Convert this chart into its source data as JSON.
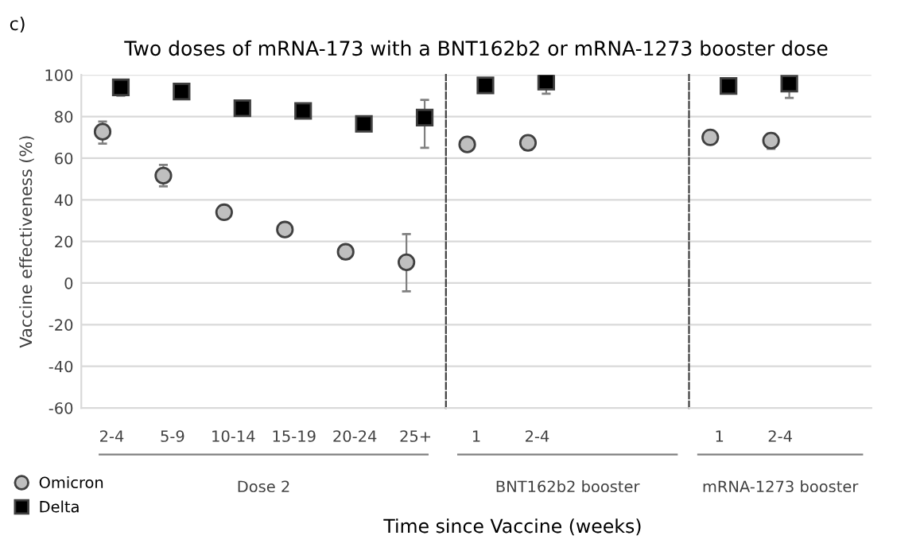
{
  "chart_data": [
    {
      "type": "scatter",
      "title": "Two doses of mRNA-173 with a BNT162b2 or mRNA-1273 booster dose",
      "ylabel": "Vaccine effectiveness (%)",
      "xlabel": "Dose 2",
      "categories": [
        "2-4",
        "5-9",
        "10-14",
        "15-19",
        "20-24",
        "25+"
      ],
      "series": [
        {
          "name": "Omicron",
          "color": "#bfbfbf",
          "marker": "circle",
          "values": [
            72.7,
            51.6,
            34,
            25.7,
            15,
            10
          ],
          "errors": [
            [
              67,
              77.6
            ],
            [
              46.5,
              56.8
            ],
            [
              32,
              36
            ],
            null,
            [
              11.6,
              18
            ],
            [
              -4,
              23.5
            ]
          ]
        },
        {
          "name": "Delta",
          "color": "#000000",
          "marker": "square",
          "values": [
            94,
            92,
            84,
            82.7,
            76.5,
            79.5
          ],
          "errors": [
            [
              90,
              94
            ],
            null,
            null,
            null,
            null,
            [
              65,
              88
            ]
          ]
        }
      ],
      "ylim": [
        -60,
        100
      ],
      "yticks": [
        -60,
        -40,
        -20,
        0,
        20,
        40,
        60,
        80,
        100
      ],
      "grid": "y",
      "legend": "bottom left",
      "annotations": [
        "c)",
        "Time since Vaccine (weeks)"
      ]
    },
    {
      "type": "scatter",
      "xlabel": "BNT162b2 booster",
      "categories": [
        "1",
        "2-4",
        null,
        null
      ],
      "series": [
        {
          "color": "#bfbfbf",
          "marker": "circle",
          "values": [
            66.6,
            67.4,
            null,
            null
          ],
          "errors": [
            null,
            [
              64,
              70.5
            ],
            null,
            null
          ]
        },
        {
          "color": "#000000",
          "marker": "square",
          "values": [
            95,
            96.8,
            null,
            null
          ],
          "errors": [
            null,
            [
              91,
              96.8
            ],
            null,
            null
          ]
        }
      ],
      "ylim": [
        -60,
        100
      ],
      "yticks": [
        -60,
        -40,
        -20,
        0,
        20,
        40,
        60,
        80,
        100
      ],
      "grid": "y",
      "tick_labels": "x"
    },
    {
      "type": "scatter",
      "xlabel": "mRNA-1273 booster",
      "categories": [
        "1",
        "2-4",
        null
      ],
      "series": [
        {
          "color": "#bfbfbf",
          "marker": "circle",
          "values": [
            70,
            68.4,
            null
          ],
          "errors": [
            null,
            [
              64.5,
              71.8
            ],
            null
          ]
        },
        {
          "color": "#000000",
          "marker": "square",
          "values": [
            94.7,
            95.8,
            null
          ],
          "errors": [
            null,
            [
              89,
              95.8
            ],
            null
          ]
        }
      ],
      "ylim": [
        -60,
        100
      ],
      "yticks": [
        -60,
        -40,
        -20,
        0,
        20,
        40,
        60,
        80,
        100
      ],
      "grid": "y",
      "tick_labels": "x"
    }
  ]
}
